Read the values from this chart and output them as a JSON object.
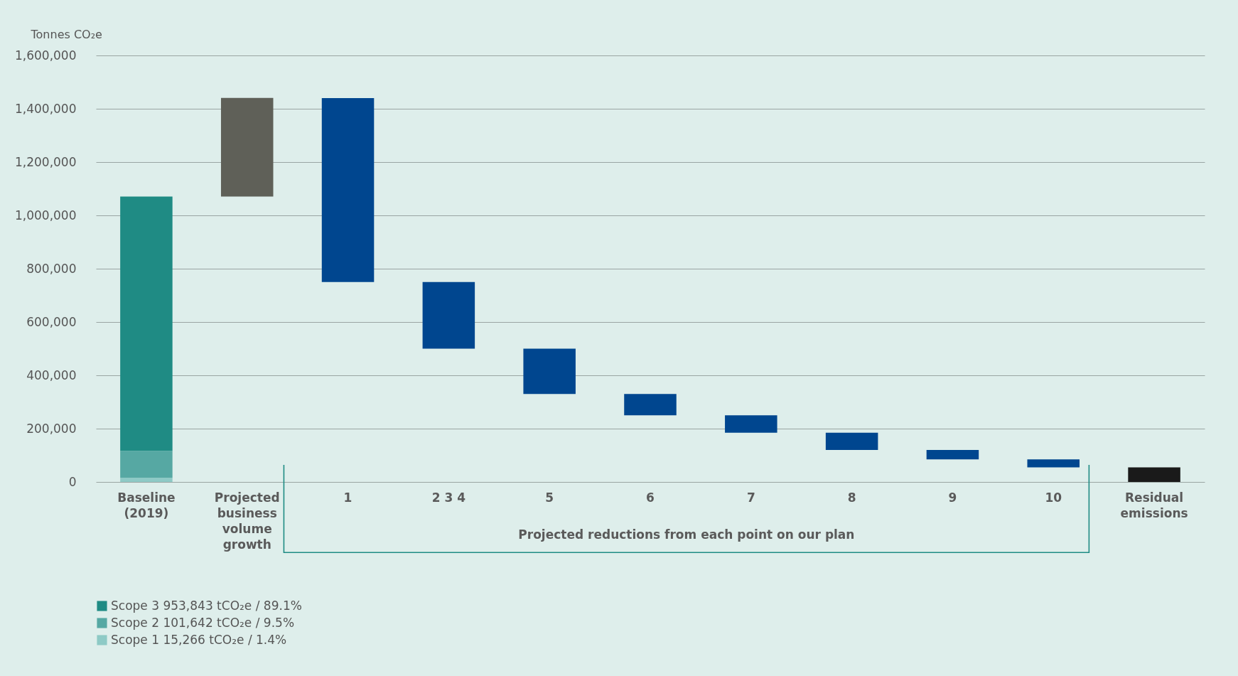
{
  "chart_data": {
    "type": "bar",
    "ylabel": "Tonnes CO₂e",
    "stacked": true,
    "categories": [
      "Baseline (2019)",
      "Projected business volume growth",
      "1",
      "2 3 4",
      "5",
      "6",
      "7",
      "8",
      "9",
      "10",
      "Residual emissions"
    ],
    "series": [
      {
        "name": "Scope 1   15,266 tCO₂e / 1.4%",
        "color": "#8ecac6",
        "values": [
          15266,
          null,
          null,
          null,
          null,
          null,
          null,
          null,
          null,
          null,
          null
        ]
      },
      {
        "name": "Scope 2   101,642 tCO₂e / 9.5%",
        "color": "#56a8a3",
        "values": [
          101642,
          null,
          null,
          null,
          null,
          null,
          null,
          null,
          null,
          null,
          null
        ]
      },
      {
        "name": "Scope 3   953,843 tCO₂e / 89.1%",
        "color": "#1f8b84",
        "values": [
          953843,
          null,
          null,
          null,
          null,
          null,
          null,
          null,
          null,
          null,
          null
        ]
      },
      {
        "color": "#5f6058",
        "base": [
          null,
          1070751,
          null,
          null,
          null,
          null,
          null,
          null,
          null,
          null,
          null
        ],
        "values": [
          null,
          370000,
          null,
          null,
          null,
          null,
          null,
          null,
          null,
          null,
          null
        ]
      },
      {
        "color": "#00468f",
        "base": [
          null,
          null,
          1440000,
          750000,
          500000,
          330000,
          250000,
          185000,
          120000,
          85000,
          null
        ],
        "values": [
          null,
          null,
          -690000,
          -250000,
          -170000,
          -80000,
          -65000,
          -65000,
          -35000,
          -30000,
          null
        ]
      },
      {
        "color": "#1a1a1a",
        "base": [
          null,
          null,
          null,
          null,
          null,
          null,
          null,
          null,
          null,
          null,
          0
        ],
        "values": [
          null,
          null,
          null,
          null,
          null,
          null,
          null,
          null,
          null,
          null,
          55000
        ]
      }
    ],
    "ylim": [
      0,
      1600000
    ],
    "yticks": [
      0,
      {
        "value": 200000,
        "label": "200,000"
      },
      {
        "value": 400000,
        "label": "400,000"
      },
      {
        "value": 600000,
        "label": "600,000"
      },
      {
        "value": 800000,
        "label": "800,000"
      },
      {
        "value": 1000000,
        "label": "1,000,000"
      },
      {
        "value": 1200000,
        "label": "1,200,000"
      },
      {
        "value": 1400000,
        "label": "1,400,000"
      },
      {
        "value": 1600000,
        "label": "1,600,000"
      }
    ],
    "grid": "y",
    "legend": "bottom left",
    "annotations": [
      "Projected reductions from each point on our plan"
    ]
  }
}
